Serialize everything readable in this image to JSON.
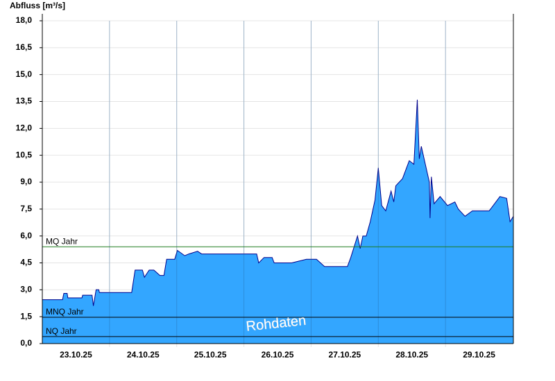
{
  "chart_data": {
    "type": "area",
    "y_label": "Abfluss [m³/s]",
    "watermark": "Rohdaten",
    "xlim": [
      0,
      7.01
    ],
    "xticks": [
      {
        "value": 0.5,
        "label": "23.10.25"
      },
      {
        "value": 1.5,
        "label": "24.10.25"
      },
      {
        "value": 2.5,
        "label": "25.10.25"
      },
      {
        "value": 3.5,
        "label": "26.10.25"
      },
      {
        "value": 4.5,
        "label": "27.10.25"
      },
      {
        "value": 5.5,
        "label": "28.10.25"
      },
      {
        "value": 6.5,
        "label": "29.10.25"
      }
    ],
    "ylim": [
      0,
      18
    ],
    "yticks": [
      {
        "value": 0,
        "label": "0,0"
      },
      {
        "value": 1.5,
        "label": "1,5"
      },
      {
        "value": 3,
        "label": "3,0"
      },
      {
        "value": 4.5,
        "label": "4,5"
      },
      {
        "value": 6,
        "label": "6,0"
      },
      {
        "value": 7.5,
        "label": "7,5"
      },
      {
        "value": 9,
        "label": "9,0"
      },
      {
        "value": 10.5,
        "label": "10,5"
      },
      {
        "value": 12,
        "label": "12,0"
      },
      {
        "value": 13.5,
        "label": "13,5"
      },
      {
        "value": 15,
        "label": "15,0"
      },
      {
        "value": 16.5,
        "label": "16,5"
      },
      {
        "value": 18,
        "label": "18,0"
      }
    ],
    "grid": true,
    "x": [
      0,
      0.3,
      0.32,
      0.37,
      0.38,
      0.59,
      0.6,
      0.74,
      0.76,
      0.8,
      0.84,
      0.85,
      1.33,
      1.38,
      1.49,
      1.52,
      1.59,
      1.66,
      1.75,
      1.81,
      1.85,
      1.97,
      2.01,
      2.12,
      2.18,
      2.31,
      2.37,
      3.19,
      3.22,
      3.3,
      3.42,
      3.45,
      3.71,
      3.93,
      4.08,
      4.2,
      4.54,
      4.59,
      4.69,
      4.73,
      4.77,
      4.82,
      4.88,
      4.95,
      5.0,
      5.05,
      5.11,
      5.19,
      5.23,
      5.26,
      5.36,
      5.46,
      5.53,
      5.58,
      5.61,
      5.64,
      5.7,
      5.76,
      5.77,
      5.79,
      5.83,
      5.92,
      6.03,
      6.14,
      6.19,
      6.29,
      6.4,
      6.65,
      6.73,
      6.81,
      6.91,
      6.96,
      7.01
    ],
    "series": [
      {
        "color": "#33a6ff",
        "line_color": "#00008b",
        "values": [
          2.45,
          2.45,
          2.8,
          2.8,
          2.55,
          2.55,
          2.7,
          2.7,
          2.1,
          3.0,
          3.0,
          2.85,
          2.85,
          4.1,
          4.1,
          3.7,
          4.1,
          4.1,
          3.8,
          3.8,
          4.7,
          4.7,
          5.2,
          4.9,
          5.0,
          5.15,
          5.0,
          5.0,
          4.5,
          4.8,
          4.8,
          4.5,
          4.5,
          4.7,
          4.7,
          4.3,
          4.3,
          4.8,
          6.0,
          5.3,
          6.0,
          6.0,
          6.8,
          8.0,
          9.8,
          7.7,
          7.4,
          8.5,
          7.9,
          8.8,
          9.2,
          10.2,
          10.0,
          13.6,
          10.3,
          11.0,
          10.0,
          9.0,
          7.0,
          9.3,
          7.8,
          8.2,
          7.7,
          7.9,
          7.5,
          7.1,
          7.4,
          7.4,
          7.8,
          8.2,
          8.1,
          6.8,
          7.1
        ]
      }
    ],
    "reference_lines": [
      {
        "label": "MQ Jahr",
        "value": 5.4,
        "color": "#1a7a1a"
      },
      {
        "label": "MNQ Jahr",
        "value": 1.47,
        "color": "#000000"
      },
      {
        "label": "NQ Jahr",
        "value": 0.39,
        "color": "#000000"
      }
    ]
  }
}
